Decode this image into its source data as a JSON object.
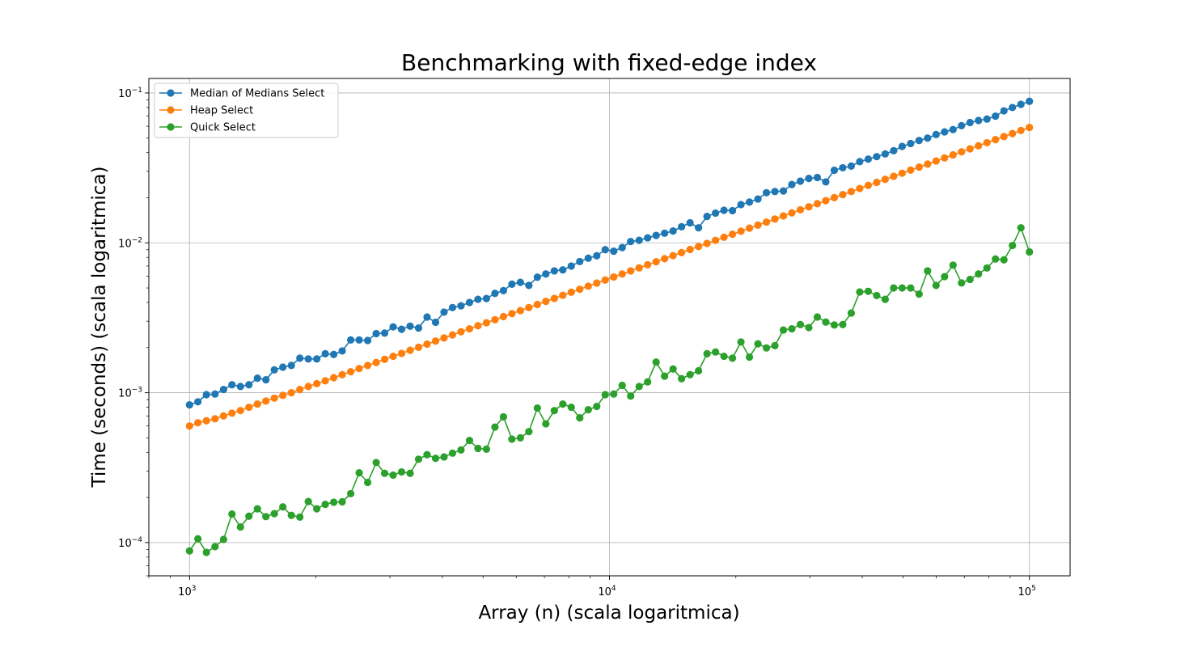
{
  "chart_data": {
    "type": "line",
    "title": "Benchmarking with fixed-edge index",
    "xlabel": "Array (n) (scala logaritmica)",
    "ylabel": "Time (seconds) (scala logaritmica)",
    "xscale": "log",
    "yscale": "log",
    "xlim": [
      800,
      125000
    ],
    "ylim": [
      6e-05,
      0.125
    ],
    "grid": true,
    "legend_position": "top-left",
    "x_ticks": [
      {
        "value": 1000,
        "base": "10",
        "exp": "3"
      },
      {
        "value": 10000,
        "base": "10",
        "exp": "4"
      },
      {
        "value": 100000,
        "base": "10",
        "exp": "5"
      }
    ],
    "y_ticks": [
      {
        "value": 0.0001,
        "base": "10",
        "exp": "−4"
      },
      {
        "value": 0.001,
        "base": "10",
        "exp": "−3"
      },
      {
        "value": 0.01,
        "base": "10",
        "exp": "−2"
      },
      {
        "value": 0.1,
        "base": "10",
        "exp": "−1"
      }
    ],
    "x": [
      1000,
      1047,
      1097,
      1150,
      1205,
      1262,
      1322,
      1385,
      1451,
      1520,
      1592,
      1668,
      1748,
      1831,
      1918,
      2009,
      2105,
      2205,
      2310,
      2420,
      2535,
      2656,
      2783,
      2915,
      3054,
      3199,
      3352,
      3511,
      3678,
      3854,
      4037,
      4229,
      4431,
      4642,
      4863,
      5094,
      5337,
      5591,
      5857,
      6136,
      6428,
      6734,
      7055,
      7391,
      7743,
      8111,
      8497,
      8902,
      9326,
      9770,
      10235,
      10723,
      11233,
      11768,
      12328,
      12915,
      13530,
      14175,
      14849,
      15556,
      16297,
      17073,
      17886,
      18738,
      19630,
      20565,
      21544,
      22570,
      23645,
      24771,
      25950,
      27186,
      28480,
      29836,
      31257,
      32745,
      34305,
      35938,
      37649,
      39442,
      41320,
      43288,
      45349,
      47508,
      49770,
      52140,
      54623,
      57224,
      59948,
      62803,
      65793,
      68926,
      72208,
      75646,
      79248,
      83022,
      86975,
      91116,
      95455,
      100000
    ],
    "series": [
      {
        "name": "Median of Medians Select",
        "color": "#1f77b4",
        "values": [
          0.00083,
          0.00087,
          0.00097,
          0.00098,
          0.00105,
          0.00113,
          0.0011,
          0.00113,
          0.00125,
          0.00122,
          0.00142,
          0.00148,
          0.00152,
          0.0017,
          0.00168,
          0.00168,
          0.00182,
          0.0018,
          0.0019,
          0.00225,
          0.00225,
          0.00223,
          0.00248,
          0.0025,
          0.00275,
          0.00265,
          0.00278,
          0.0027,
          0.0032,
          0.00295,
          0.00345,
          0.0037,
          0.0038,
          0.004,
          0.0042,
          0.00425,
          0.0046,
          0.0048,
          0.0053,
          0.00545,
          0.0052,
          0.0059,
          0.0062,
          0.0065,
          0.0066,
          0.007,
          0.0075,
          0.0079,
          0.0082,
          0.009,
          0.0088,
          0.0093,
          0.0102,
          0.0104,
          0.0108,
          0.0112,
          0.0116,
          0.012,
          0.0128,
          0.0136,
          0.0126,
          0.015,
          0.0158,
          0.0165,
          0.0164,
          0.018,
          0.0187,
          0.0196,
          0.0216,
          0.022,
          0.0222,
          0.0245,
          0.0258,
          0.0269,
          0.0273,
          0.0255,
          0.0305,
          0.0317,
          0.0325,
          0.0348,
          0.0362,
          0.0376,
          0.0392,
          0.0412,
          0.044,
          0.046,
          0.0482,
          0.05,
          0.0528,
          0.055,
          0.057,
          0.0605,
          0.0635,
          0.0655,
          0.067,
          0.07,
          0.076,
          0.08,
          0.084,
          0.088
        ]
      },
      {
        "name": "Heap Select",
        "color": "#ff7f0e",
        "values": [
          0.0006,
          0.00063,
          0.00065,
          0.00067,
          0.0007,
          0.00073,
          0.00076,
          0.0008,
          0.00084,
          0.00088,
          0.00092,
          0.00096,
          0.001,
          0.00105,
          0.0011,
          0.00115,
          0.0012,
          0.00126,
          0.00132,
          0.00138,
          0.00145,
          0.00152,
          0.00159,
          0.00167,
          0.00175,
          0.00183,
          0.00192,
          0.00201,
          0.00211,
          0.00221,
          0.00232,
          0.00243,
          0.00255,
          0.00267,
          0.0028,
          0.00293,
          0.00307,
          0.00322,
          0.00337,
          0.00353,
          0.0037,
          0.00388,
          0.00407,
          0.00426,
          0.00447,
          0.00468,
          0.0049,
          0.00514,
          0.00539,
          0.00565,
          0.00592,
          0.0062,
          0.0065,
          0.00681,
          0.00714,
          0.00748,
          0.00784,
          0.00822,
          0.00861,
          0.00903,
          0.00946,
          0.00991,
          0.01039,
          0.01089,
          0.01141,
          0.01196,
          0.01253,
          0.01313,
          0.01376,
          0.01442,
          0.01512,
          0.01584,
          0.01661,
          0.0174,
          0.01824,
          0.01911,
          0.02003,
          0.02099,
          0.022,
          0.02305,
          0.02416,
          0.02532,
          0.02654,
          0.02781,
          0.02915,
          0.03055,
          0.03201,
          0.03355,
          0.03516,
          0.03685,
          0.03862,
          0.04047,
          0.04241,
          0.04445,
          0.04659,
          0.04882,
          0.05117,
          0.05362,
          0.0562,
          0.0589
        ]
      },
      {
        "name": "Quick Select",
        "color": "#2ca02c",
        "values": [
          8.8e-05,
          0.000106,
          8.6e-05,
          9.4e-05,
          0.000105,
          0.000155,
          0.000127,
          0.00015,
          0.000168,
          0.000149,
          0.000156,
          0.000173,
          0.000152,
          0.000148,
          0.000188,
          0.000168,
          0.00018,
          0.000186,
          0.000187,
          0.000212,
          0.000292,
          0.000252,
          0.000342,
          0.00029,
          0.000282,
          0.000296,
          0.00029,
          0.00036,
          0.000386,
          0.000365,
          0.000373,
          0.000395,
          0.000415,
          0.00048,
          0.000425,
          0.00042,
          0.00059,
          0.00069,
          0.00049,
          0.0005,
          0.00055,
          0.00079,
          0.00062,
          0.00076,
          0.00084,
          0.0008,
          0.00068,
          0.00077,
          0.00081,
          0.00097,
          0.00098,
          0.00112,
          0.00095,
          0.0011,
          0.00118,
          0.0016,
          0.00129,
          0.00144,
          0.00124,
          0.00132,
          0.0014,
          0.00182,
          0.00187,
          0.00175,
          0.0017,
          0.00218,
          0.00173,
          0.00212,
          0.00199,
          0.00206,
          0.00262,
          0.00267,
          0.00285,
          0.00272,
          0.0032,
          0.00296,
          0.00283,
          0.00285,
          0.0034,
          0.0047,
          0.00475,
          0.00445,
          0.0042,
          0.005,
          0.005,
          0.005,
          0.00455,
          0.0065,
          0.0052,
          0.00595,
          0.0071,
          0.0054,
          0.0057,
          0.0062,
          0.0068,
          0.0078,
          0.0077,
          0.0096,
          0.0126,
          0.0087
        ]
      }
    ]
  }
}
